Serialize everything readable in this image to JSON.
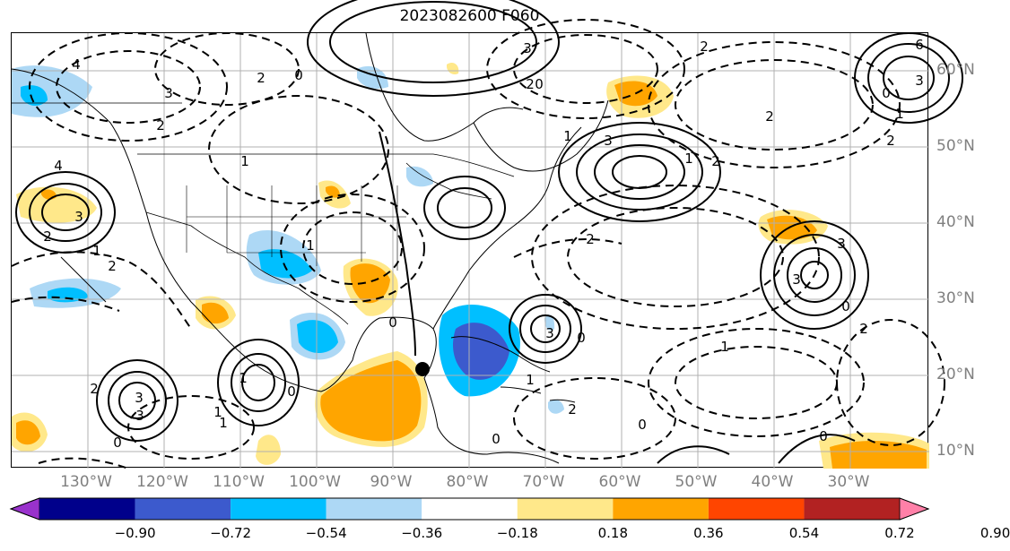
{
  "title": "2023082600 F060",
  "lon_labels": [
    "130°W",
    "120°W",
    "110°W",
    "100°W",
    "90°W",
    "80°W",
    "70°W",
    "60°W",
    "50°W",
    "40°W",
    "30°W"
  ],
  "lat_labels": [
    "60°N",
    "50°N",
    "40°N",
    "30°N",
    "20°N",
    "10°N"
  ],
  "colorbar": {
    "ticks": [
      "−0.90",
      "−0.72",
      "−0.54",
      "−0.36",
      "−0.18",
      "0.18",
      "0.36",
      "0.54",
      "0.72",
      "0.90"
    ],
    "colors": [
      "#9932cc",
      "#00008b",
      "#3c5acd",
      "#00bfff",
      "#add8f5",
      "#ffffff",
      "#ffe88a",
      "#ffa500",
      "#ff4500",
      "#b22222",
      "#ff80a8"
    ]
  },
  "contour_labels": [
    "4",
    "3",
    "2",
    "2",
    "4",
    "3",
    "2",
    "3",
    "2",
    "1",
    "0",
    "1",
    "3",
    "2",
    "2",
    "3",
    "3",
    "2",
    "1",
    "0",
    "1",
    "2",
    "0",
    "2",
    "3",
    "1",
    "0",
    "1",
    "1",
    "0",
    "0",
    "0",
    "0",
    "3",
    "2",
    "3",
    "1",
    "2",
    "6",
    "3",
    "0",
    "1",
    "2",
    "2",
    "1",
    "0",
    "0",
    "1"
  ],
  "storm_marker": {
    "lon": -86.5,
    "lat": 20.8
  }
}
